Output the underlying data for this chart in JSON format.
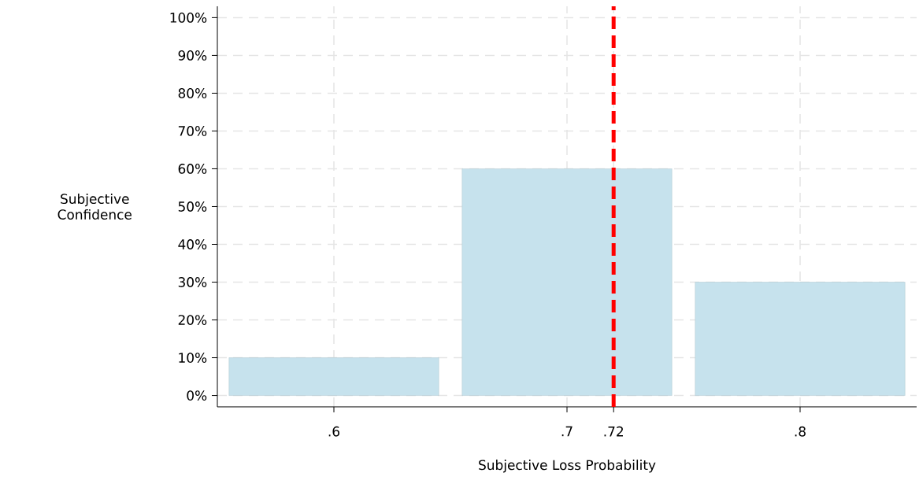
{
  "chart_data": {
    "type": "bar",
    "xlabel": "Subjective Loss Probability",
    "ylabel": "Subjective Confidence",
    "x": [
      0.6,
      0.7,
      0.8
    ],
    "values": [
      10,
      60,
      30
    ],
    "color": "#c6e2ed",
    "xlim": [
      0.55,
      0.85
    ],
    "xticks": [
      {
        "value": 0.6,
        "label": ".6"
      },
      {
        "value": 0.7,
        "label": ".7"
      },
      {
        "value": 0.72,
        "label": ".72"
      },
      {
        "value": 0.8,
        "label": ".8"
      }
    ],
    "ylim": [
      -3,
      103
    ],
    "yticks": [
      {
        "value": 0,
        "label": "0%"
      },
      {
        "value": 10,
        "label": "10%"
      },
      {
        "value": 20,
        "label": "20%"
      },
      {
        "value": 30,
        "label": "30%"
      },
      {
        "value": 40,
        "label": "40%"
      },
      {
        "value": 50,
        "label": "50%"
      },
      {
        "value": 60,
        "label": "60%"
      },
      {
        "value": 70,
        "label": "70%"
      },
      {
        "value": 80,
        "label": "80%"
      },
      {
        "value": 90,
        "label": "90%"
      },
      {
        "value": 100,
        "label": "100%"
      }
    ],
    "ref_lines": [
      {
        "axis": "x",
        "value": 0.72,
        "color": "#ff0000",
        "line_style": "dashed"
      }
    ],
    "grid": true
  }
}
